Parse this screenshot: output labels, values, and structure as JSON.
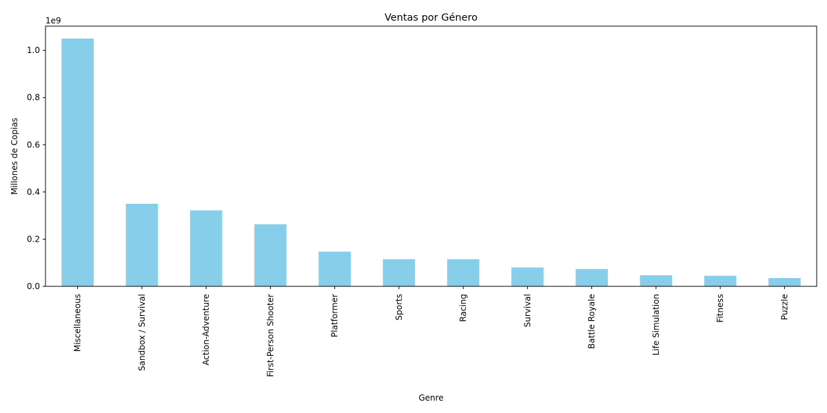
{
  "chart_data": {
    "type": "bar",
    "title": "Ventas por Género",
    "xlabel": "Genre",
    "ylabel": "Millones de Copias",
    "y_offset_label": "1e9",
    "categories": [
      "Miscellaneous",
      "Sandbox / Survival",
      "Action-Adventure",
      "First-Person Shooter",
      "Platformer",
      "Sports",
      "Racing",
      "Survival",
      "Battle Royale",
      "Life Simulation",
      "Fitness",
      "Puzzle"
    ],
    "values": [
      1050000000,
      350000000,
      322000000,
      263000000,
      147000000,
      115000000,
      115000000,
      80000000,
      73000000,
      47000000,
      45000000,
      35000000
    ],
    "ylim": [
      0,
      1102500000
    ],
    "yticks": [
      0,
      200000000,
      400000000,
      600000000,
      800000000,
      1000000000
    ],
    "ytick_labels": [
      "0.0",
      "0.2",
      "0.4",
      "0.6",
      "0.8",
      "1.0"
    ],
    "bar_color": "#87ceeb",
    "grid": false,
    "legend": "none"
  }
}
